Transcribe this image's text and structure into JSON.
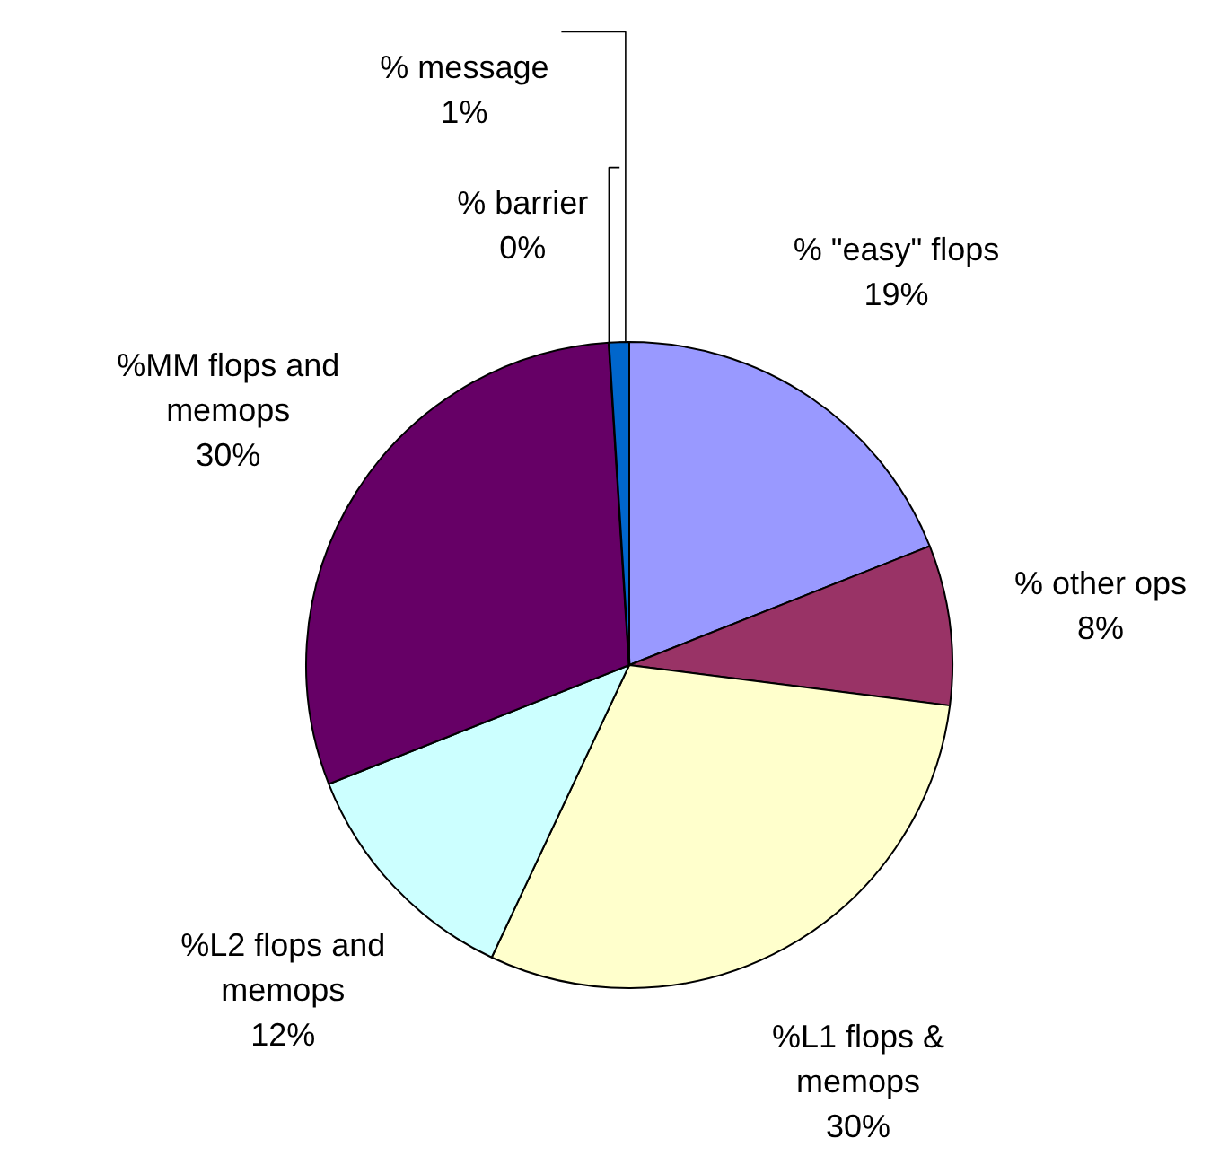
{
  "chart_data": {
    "type": "pie",
    "categories": [
      "% \"easy\" flops",
      "% other ops",
      "%L1 flops & memops",
      "%L2 flops and memops",
      "%MM flops and memops",
      "% barrier",
      "% message"
    ],
    "values": [
      19,
      8,
      30,
      12,
      30,
      0,
      1
    ],
    "value_labels": [
      "19%",
      "8%",
      "30%",
      "12%",
      "30%",
      "0%",
      "1%"
    ],
    "colors": [
      "#9999ff",
      "#993366",
      "#ffffcc",
      "#ccffff",
      "#660066",
      "#000000",
      "#0066cc"
    ]
  }
}
